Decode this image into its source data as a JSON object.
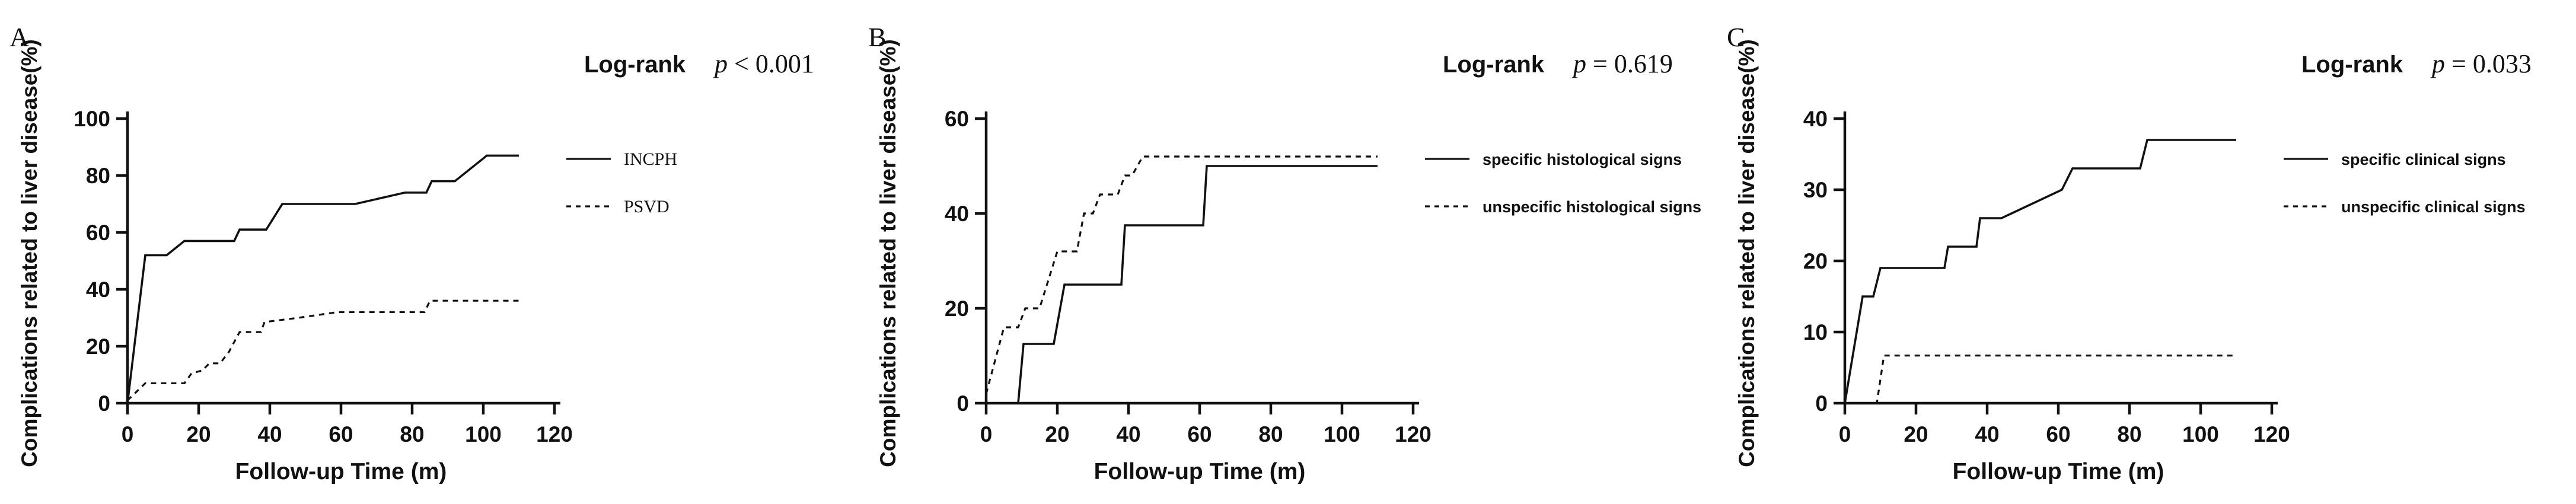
{
  "figure": {
    "background": "#ffffff",
    "line_color": "#111111",
    "xlabel": "Follow-up Time (m)",
    "ylabel": "Complications related to liver disease(%)"
  },
  "chart_data": [
    {
      "type": "line",
      "panel_label": "A",
      "logrank_label": "Log-rank",
      "p_symbol": "p",
      "p_rest": " < 0.001",
      "xlabel": "Follow-up Time (m)",
      "ylabel": "Complications related to liver disease(%)",
      "xlim": [
        0,
        120
      ],
      "ylim": [
        0,
        100
      ],
      "xticks": [
        0,
        20,
        40,
        60,
        80,
        100,
        120
      ],
      "yticks": [
        0,
        20,
        40,
        60,
        80,
        100
      ],
      "legend_position": "right",
      "grid": false,
      "legend_serif": true,
      "series": [
        {
          "name": "INCPH",
          "style": "solid",
          "points": [
            [
              0,
              0
            ],
            [
              5,
              52
            ],
            [
              11,
              52
            ],
            [
              16,
              57
            ],
            [
              30,
              57
            ],
            [
              31.5,
              61
            ],
            [
              39,
              61
            ],
            [
              43.5,
              70
            ],
            [
              64,
              70
            ],
            [
              78,
              74
            ],
            [
              84,
              74
            ],
            [
              85.5,
              78
            ],
            [
              92,
              78
            ],
            [
              101,
              87
            ],
            [
              110,
              87
            ]
          ]
        },
        {
          "name": "PSVD",
          "style": "dotted",
          "points": [
            [
              0,
              1
            ],
            [
              5,
              7
            ],
            [
              16,
              7
            ],
            [
              18,
              10.5
            ],
            [
              21,
              11.5
            ],
            [
              23,
              14
            ],
            [
              26,
              14
            ],
            [
              28.5,
              18
            ],
            [
              31.5,
              25
            ],
            [
              37.5,
              25
            ],
            [
              38.5,
              28.5
            ],
            [
              48,
              30
            ],
            [
              59,
              32
            ],
            [
              83.5,
              32
            ],
            [
              85,
              36
            ],
            [
              110,
              36
            ]
          ]
        }
      ]
    },
    {
      "type": "line",
      "panel_label": "B",
      "logrank_label": "Log-rank",
      "p_symbol": "p",
      "p_rest": " = 0.619",
      "xlabel": "Follow-up Time (m)",
      "ylabel": "Complications related to liver disease(%)",
      "xlim": [
        0,
        120
      ],
      "ylim": [
        0,
        60
      ],
      "xticks": [
        0,
        20,
        40,
        60,
        80,
        100,
        120
      ],
      "yticks": [
        0,
        20,
        40,
        60
      ],
      "legend_position": "right",
      "grid": false,
      "legend_serif": false,
      "series": [
        {
          "name": "specific histological signs",
          "style": "solid",
          "points": [
            [
              0,
              0
            ],
            [
              9,
              0
            ],
            [
              10.5,
              12.5
            ],
            [
              19,
              12.5
            ],
            [
              22,
              25
            ],
            [
              38,
              25
            ],
            [
              39,
              37.5
            ],
            [
              61,
              37.5
            ],
            [
              62,
              50
            ],
            [
              110,
              50
            ]
          ]
        },
        {
          "name": "unspecific histological signs",
          "style": "dotted",
          "points": [
            [
              0,
              2
            ],
            [
              5,
              16
            ],
            [
              9,
              16
            ],
            [
              11,
              20
            ],
            [
              15,
              20
            ],
            [
              20,
              32
            ],
            [
              25.5,
              32
            ],
            [
              27.5,
              40
            ],
            [
              30,
              40
            ],
            [
              32,
              44
            ],
            [
              37,
              44
            ],
            [
              39,
              48
            ],
            [
              41,
              48
            ],
            [
              44,
              52
            ],
            [
              110,
              52
            ]
          ]
        }
      ]
    },
    {
      "type": "line",
      "panel_label": "C",
      "logrank_label": "Log-rank",
      "p_symbol": "p",
      "p_rest": " = 0.033",
      "xlabel": "Follow-up Time (m)",
      "ylabel": "Complications related to liver disease(%)",
      "xlim": [
        0,
        120
      ],
      "ylim": [
        0,
        40
      ],
      "xticks": [
        0,
        20,
        40,
        60,
        80,
        100,
        120
      ],
      "yticks": [
        0,
        10,
        20,
        30,
        40
      ],
      "legend_position": "right",
      "grid": false,
      "legend_serif": false,
      "series": [
        {
          "name": "specific clinical signs",
          "style": "solid",
          "points": [
            [
              0,
              0
            ],
            [
              5,
              15
            ],
            [
              8,
              15
            ],
            [
              10,
              19
            ],
            [
              28,
              19
            ],
            [
              29,
              22
            ],
            [
              37,
              22
            ],
            [
              38,
              26
            ],
            [
              44,
              26
            ],
            [
              61,
              30
            ],
            [
              64,
              33
            ],
            [
              83,
              33
            ],
            [
              85,
              37
            ],
            [
              110,
              37
            ]
          ]
        },
        {
          "name": "unspecific clinical signs",
          "style": "dotted",
          "points": [
            [
              0,
              0
            ],
            [
              9,
              0
            ],
            [
              11,
              6.7
            ],
            [
              110,
              6.7
            ]
          ]
        }
      ]
    }
  ]
}
